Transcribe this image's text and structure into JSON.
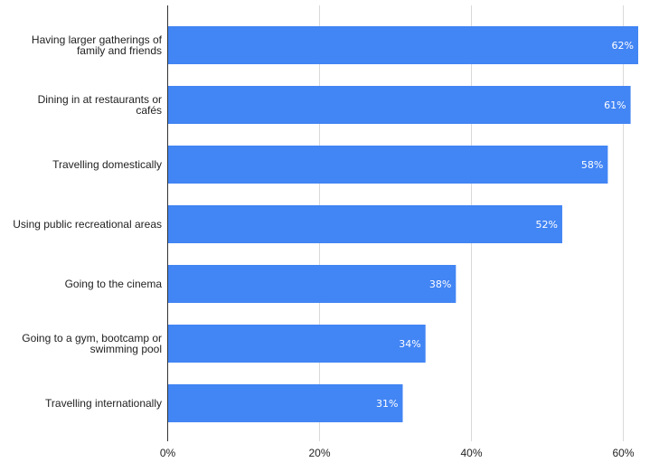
{
  "chart_data": {
    "type": "bar",
    "orientation": "horizontal",
    "categories": [
      [
        "Having larger gatherings of",
        "family and friends"
      ],
      [
        "Dining in at restaurants or",
        "cafés"
      ],
      [
        "Travelling domestically"
      ],
      [
        "Using public recreational areas"
      ],
      [
        "Going to the cinema"
      ],
      [
        "Going to a gym, bootcamp or",
        "swimming pool"
      ],
      [
        "Travelling internationally"
      ]
    ],
    "values": [
      62,
      61,
      58,
      52,
      38,
      34,
      31
    ],
    "data_labels": [
      "62%",
      "61%",
      "58%",
      "52%",
      "38%",
      "34%",
      "31%"
    ],
    "x_ticks": [
      0,
      20,
      40,
      60
    ],
    "x_tick_labels": [
      "0%",
      "20%",
      "40%",
      "60%"
    ],
    "xlim": [
      0,
      62
    ],
    "grid": "vertical",
    "legend": "none",
    "title": "",
    "xlabel": "",
    "ylabel": "",
    "colors": {
      "bar": "#4285f4",
      "grid": "#d9d9d9",
      "axis": "#333333",
      "text": "#222222",
      "data_label": "#ffffff"
    }
  }
}
